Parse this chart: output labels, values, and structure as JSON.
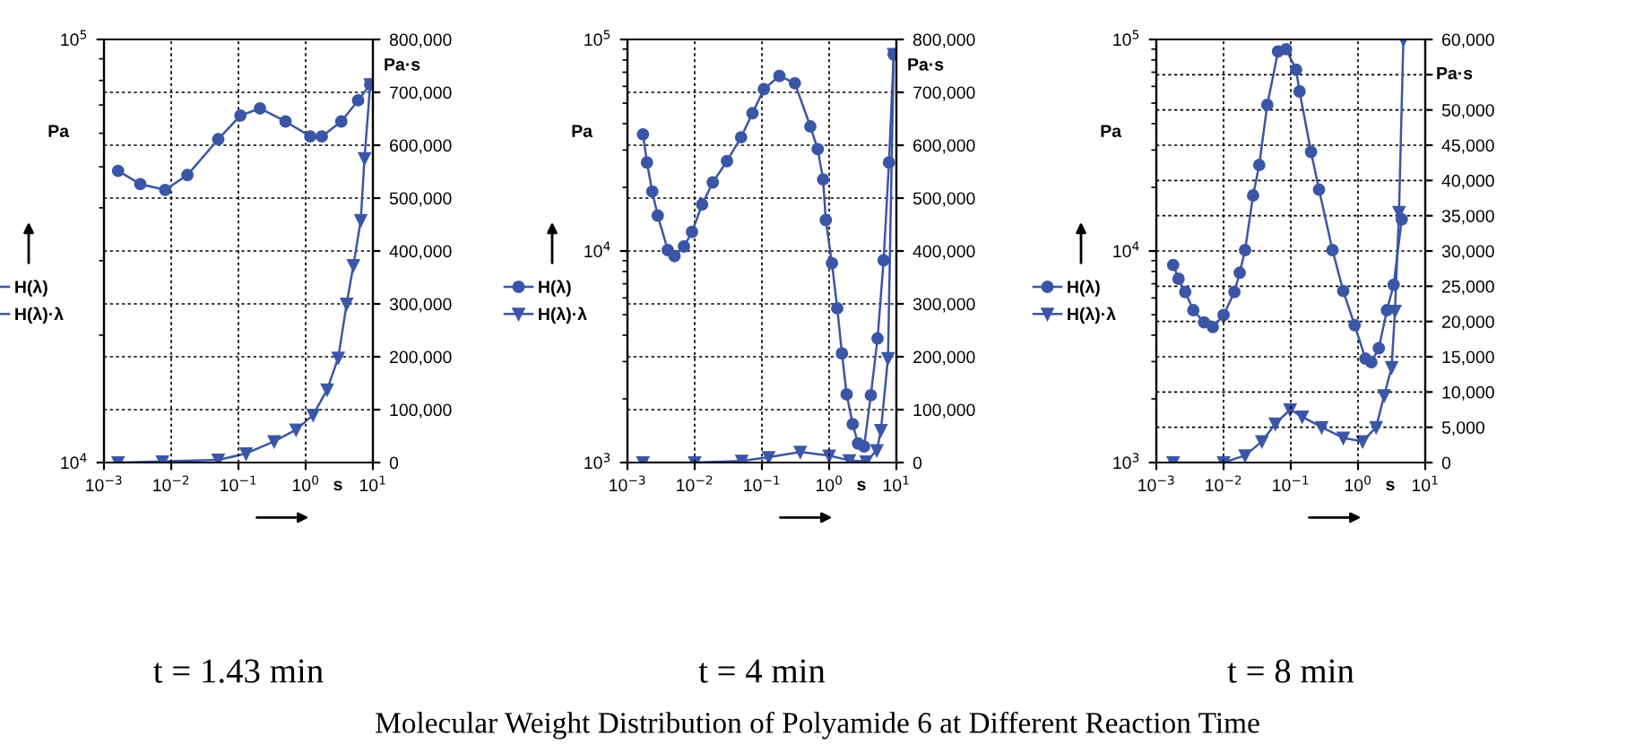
{
  "chart_data": [
    {
      "type": "line",
      "title": "t = 1.43 min",
      "xlabel": "s",
      "ylabel": "Pa",
      "y2label": "Pa·s",
      "log": "xy",
      "grid": true,
      "legend": "left",
      "line_style": "solid",
      "xlim": [
        0.001,
        10
      ],
      "xticks": [
        {
          "value": 0.001,
          "label": "10$^{−3}$"
        },
        {
          "value": 0.01,
          "label": "10$^{−2}$"
        },
        {
          "value": 0.1,
          "label": "10$^{−1}$"
        },
        {
          "value": 1,
          "label": "10$^{0}$"
        },
        {
          "value": 10,
          "label": "10$^{1}$"
        }
      ],
      "ylim": [
        10000,
        100000
      ],
      "yticks": [
        {
          "value": 10000,
          "label": "10$^{4}$"
        },
        {
          "value": 100000,
          "label": "10$^{5}$"
        }
      ],
      "y2lim": [
        0,
        800000
      ],
      "y2ticks": [
        0,
        {
          "value": 100000,
          "label": "100,000"
        },
        {
          "value": 200000,
          "label": "200,000"
        },
        {
          "value": 300000,
          "label": "300,000"
        },
        {
          "value": 400000,
          "label": "400,000"
        },
        {
          "value": 500000,
          "label": "500,000"
        },
        {
          "value": 600000,
          "label": "600,000"
        },
        {
          "value": 700000,
          "label": "700,000"
        },
        {
          "value": 800000,
          "label": "800,000"
        }
      ],
      "series": [
        {
          "name": "H(λ)",
          "color": "#3b56a6",
          "marker": "circle",
          "x": [
            0.00162,
            0.00347,
            0.00813,
            0.0174,
            0.0501,
            0.107,
            0.209,
            0.501,
            1.17,
            1.74,
            3.39,
            6.03,
            9.12
          ],
          "values": [
            48900,
            45500,
            44100,
            47800,
            58100,
            66100,
            68700,
            64000,
            59000,
            59000,
            64000,
            71800,
            78300
          ]
        },
        {
          "name": "H(λ)·λ",
          "color": "#3b56a6",
          "marker": "triangle",
          "axis": "y2",
          "x": [
            0.00162,
            0.0074,
            0.0501,
            0.13,
            0.34,
            0.72,
            1.29,
            2.09,
            3.05,
            4.07,
            5.13,
            6.6,
            7.5,
            9.12
          ],
          "values": [
            0,
            2000,
            5000,
            17000,
            40000,
            62000,
            90000,
            138000,
            198000,
            300000,
            373000,
            458000,
            575000,
            715000
          ]
        }
      ],
      "annotations": [
        "Molecular Weight Distribution of Polyamide 6 at Different Reaction Time"
      ]
    },
    {
      "type": "line",
      "title": "t = 4 min",
      "xlabel": "s",
      "ylabel": "Pa",
      "y2label": "Pa·s",
      "log": "xy",
      "grid": true,
      "legend": "left",
      "line_style": "solid",
      "xlim": [
        0.001,
        10
      ],
      "xticks": [
        {
          "value": 0.001,
          "label": "10$^{−3}$"
        },
        {
          "value": 0.01,
          "label": "10$^{−2}$"
        },
        {
          "value": 0.1,
          "label": "10$^{−1}$"
        },
        {
          "value": 1,
          "label": "10$^{0}$"
        },
        {
          "value": 10,
          "label": "10$^{1}$"
        }
      ],
      "ylim": [
        1000,
        100000
      ],
      "yticks": [
        {
          "value": 1000,
          "label": "10$^{3}$"
        },
        {
          "value": 10000,
          "label": "10$^{4}$"
        },
        {
          "value": 100000,
          "label": "10$^{5}$"
        }
      ],
      "y2lim": [
        0,
        800000
      ],
      "y2ticks": [
        0,
        {
          "value": 100000,
          "label": "100,000"
        },
        {
          "value": 200000,
          "label": "200,000"
        },
        {
          "value": 300000,
          "label": "300,000"
        },
        {
          "value": 400000,
          "label": "400,000"
        },
        {
          "value": 500000,
          "label": "500,000"
        },
        {
          "value": 600000,
          "label": "600,000"
        },
        {
          "value": 700000,
          "label": "700,000"
        },
        {
          "value": 800000,
          "label": "800,000"
        }
      ],
      "series": [
        {
          "name": "H(λ)",
          "color": "#3b56a6",
          "marker": "circle",
          "x": [
            0.0017,
            0.00195,
            0.00234,
            0.00282,
            0.00398,
            0.00501,
            0.00692,
            0.00912,
            0.0129,
            0.0186,
            0.0302,
            0.049,
            0.0724,
            0.107,
            0.182,
            0.309,
            0.525,
            0.676,
            0.813,
            0.891,
            1.1,
            1.32,
            1.55,
            1.82,
            2.24,
            2.69,
            3.31,
            4.17,
            5.25,
            6.46,
            7.76,
            9.12
          ],
          "values": [
            35600,
            26200,
            19100,
            14700,
            10100,
            9460,
            10500,
            12300,
            16600,
            21100,
            26600,
            34500,
            44800,
            58200,
            67200,
            62100,
            38800,
            30300,
            21800,
            14000,
            8750,
            5360,
            3280,
            2100,
            1520,
            1230,
            1190,
            2080,
            3860,
            9030,
            26200,
            84900
          ]
        },
        {
          "name": "H(λ)·λ",
          "color": "#3b56a6",
          "marker": "triangle",
          "axis": "y2",
          "x": [
            0.0017,
            0.01,
            0.0501,
            0.126,
            0.372,
            1,
            2,
            3.55,
            5.13,
            5.89,
            7.5,
            9.12
          ],
          "values": [
            0,
            0,
            3000,
            10000,
            20000,
            13000,
            4000,
            2000,
            23000,
            61000,
            197000,
            772000
          ]
        }
      ]
    },
    {
      "type": "line",
      "title": "t = 8 min",
      "xlabel": "s",
      "ylabel": "Pa",
      "y2label": "Pa·s",
      "log": "xy",
      "grid": true,
      "legend": "left",
      "line_style": "solid",
      "xlim": [
        0.001,
        10
      ],
      "xticks": [
        {
          "value": 0.001,
          "label": "10$^{−3}$"
        },
        {
          "value": 0.01,
          "label": "10$^{−2}$"
        },
        {
          "value": 0.1,
          "label": "10$^{−1}$"
        },
        {
          "value": 1,
          "label": "10$^{0}$"
        },
        {
          "value": 10,
          "label": "10$^{1}$"
        }
      ],
      "ylim": [
        1000,
        100000
      ],
      "yticks": [
        {
          "value": 1000,
          "label": "10$^{3}$"
        },
        {
          "value": 10000,
          "label": "10$^{4}$"
        },
        {
          "value": 100000,
          "label": "10$^{5}$"
        }
      ],
      "y2lim": [
        0,
        60000
      ],
      "y2ticks": [
        0,
        {
          "value": 5000,
          "label": "5,000"
        },
        {
          "value": 10000,
          "label": "10,000"
        },
        {
          "value": 15000,
          "label": "15,000"
        },
        {
          "value": 20000,
          "label": "20,000"
        },
        {
          "value": 25000,
          "label": "25,000"
        },
        {
          "value": 30000,
          "label": "30,000"
        },
        {
          "value": 35000,
          "label": "35,000"
        },
        {
          "value": 40000,
          "label": "40,000"
        },
        {
          "value": 45000,
          "label": "45,000"
        },
        {
          "value": 50000,
          "label": "50,000"
        },
        {
          "value": 55000,
          "label": null
        },
        {
          "value": 60000,
          "label": "60,000"
        }
      ],
      "series": [
        {
          "name": "H(λ)",
          "color": "#3b56a6",
          "marker": "circle",
          "x": [
            0.00178,
            0.00214,
            0.00269,
            0.00355,
            0.00513,
            0.00692,
            0.01,
            0.0145,
            0.0174,
            0.0209,
            0.0275,
            0.0339,
            0.0447,
            0.0646,
            0.0851,
            0.12,
            0.135,
            0.2,
            0.263,
            0.417,
            0.603,
            0.891,
            1.29,
            1.58,
            2.04,
            2.69,
            3.39,
            4.47
          ],
          "values": [
            8590,
            7390,
            6400,
            5250,
            4600,
            4370,
            4980,
            6400,
            7890,
            10100,
            18300,
            25500,
            49100,
            87700,
            89900,
            71900,
            56800,
            29400,
            19500,
            10100,
            6470,
            4460,
            3100,
            2980,
            3470,
            5250,
            6920,
            14100
          ]
        },
        {
          "name": "H(λ)·λ",
          "color": "#3b56a6",
          "marker": "triangle",
          "axis": "y2",
          "x": [
            0.00178,
            0.01,
            0.0209,
            0.0372,
            0.0589,
            0.0977,
            0.148,
            0.288,
            0.603,
            1.17,
            1.86,
            2.45,
            3.16,
            3.55,
            4.07,
            4.73
          ],
          "values": [
            0,
            0,
            1000,
            3000,
            5500,
            7500,
            6500,
            5000,
            3500,
            3000,
            5000,
            9500,
            13500,
            21500,
            35500,
            60000
          ]
        }
      ]
    }
  ]
}
